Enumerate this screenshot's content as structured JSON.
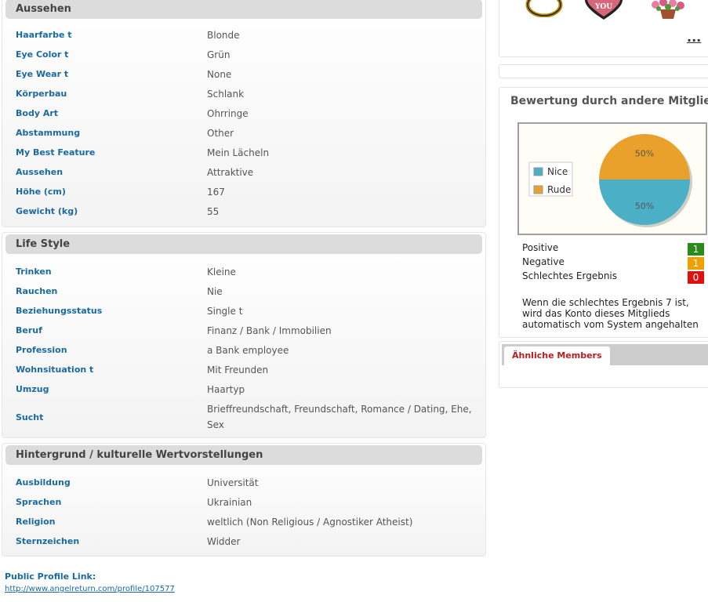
{
  "sections": [
    {
      "title": "Aussehen",
      "rows": [
        {
          "label": "Haarfarbe t",
          "value": "Blonde"
        },
        {
          "label": "Eye Color t",
          "value": "Grün"
        },
        {
          "label": "Eye Wear t",
          "value": "None"
        },
        {
          "label": "Körperbau",
          "value": "Schlank"
        },
        {
          "label": "Body Art",
          "value": "Ohrringe"
        },
        {
          "label": "Abstammung",
          "value": "Other"
        },
        {
          "label": "My Best Feature",
          "value": "Mein Lächeln"
        },
        {
          "label": "Aussehen",
          "value": "Attraktive"
        },
        {
          "label": "Höhe (cm)",
          "value": "167"
        },
        {
          "label": "Gewicht (kg)",
          "value": "55"
        }
      ]
    },
    {
      "title": "Life Style",
      "rows": [
        {
          "label": "Trinken",
          "value": "Kleine"
        },
        {
          "label": "Rauchen",
          "value": "Nie"
        },
        {
          "label": "Beziehungsstatus",
          "value": "Single t"
        },
        {
          "label": "Beruf",
          "value": "Finanz / Bank / Immobilien"
        },
        {
          "label": "Profession",
          "value": "a Bank employee"
        },
        {
          "label": "Wohnsituation t",
          "value": "Mit Freunden"
        },
        {
          "label": "Umzug",
          "value": "Haartyp"
        },
        {
          "label": "Sucht",
          "value": "Brieffreundschaft, Freundschaft, Romance / Dating, Ehe, Sex"
        }
      ]
    },
    {
      "title": "Hintergrund / kulturelle Wertvorstellungen",
      "rows": [
        {
          "label": "Ausbildung",
          "value": "Universität"
        },
        {
          "label": "Sprachen",
          "value": "Ukrainian"
        },
        {
          "label": "Religion",
          "value": "weltlich (Non Religious / Agnostiker Atheist)"
        },
        {
          "label": "Sternzeichen",
          "value": "Widder"
        }
      ]
    }
  ],
  "public_profile": {
    "label": "Public Profile Link:",
    "url": "http://www.angelreturn.com/profile/107577"
  },
  "gifts": {
    "icons": [
      "ring-icon",
      "heart-you-icon",
      "flower-pot-icon"
    ],
    "heart_text": "YOU",
    "more": "..."
  },
  "rating": {
    "title": "Bewertung durch andere Mitgliede",
    "stats": [
      {
        "label": "Positive",
        "value": "1",
        "color": "#2a8a1a"
      },
      {
        "label": "Negative",
        "value": "1",
        "color": "#f0a000"
      },
      {
        "label": "Schlechtes Ergebnis",
        "value": "0",
        "color": "#e01010"
      }
    ],
    "note": "Wenn die schlechtes Ergebnis 7 ist, wird das Konto dieses Mitglieds automatisch vom System angehalten"
  },
  "chart_data": {
    "type": "pie",
    "labels": [
      "Nice",
      "Rude"
    ],
    "values": [
      50,
      50
    ],
    "value_labels": [
      "50%",
      "50%"
    ],
    "colors": [
      "#4bafc6",
      "#e9a12b"
    ],
    "legend": "left"
  },
  "similar": {
    "tab_label": "Ähnliche Members"
  }
}
